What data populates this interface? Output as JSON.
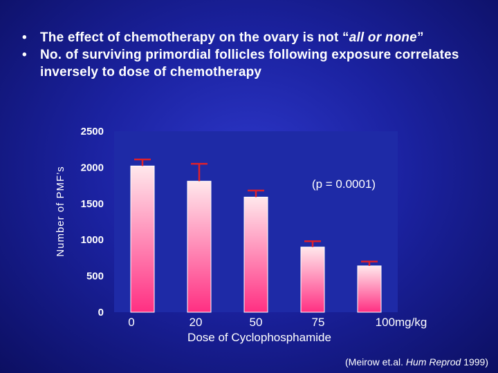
{
  "bullets": [
    {
      "part1": "The effect of chemotherapy on the ovary is not “",
      "part2": "all or none",
      "part3": "”"
    },
    {
      "text": "No. of surviving primordial follicles following exposure correlates inversely to dose of chemotherapy"
    }
  ],
  "citation": {
    "prefix": "(Meirow et.al. ",
    "journal": "Hum Reprod",
    "suffix": " 1999)"
  },
  "chart_data": {
    "type": "bar",
    "categories": [
      "0",
      "20",
      "50",
      "75",
      "100mg/kg"
    ],
    "values": [
      2020,
      1810,
      1590,
      900,
      640
    ],
    "error_upper": [
      2110,
      2050,
      1680,
      980,
      700
    ],
    "xlabel": "Dose of Cyclophosphamide",
    "ylabel": "Number of PMF’s",
    "ylim": [
      0,
      2500
    ],
    "yticks": [
      0,
      500,
      1000,
      1500,
      2000,
      2500
    ],
    "annotation": "(p = 0.0001)",
    "grid": false,
    "colors": {
      "bar_top": "#ffe8ec",
      "bar_bottom": "#ff2f82",
      "plot_bg": "#1e2aa6",
      "error": "#e0202a"
    }
  }
}
